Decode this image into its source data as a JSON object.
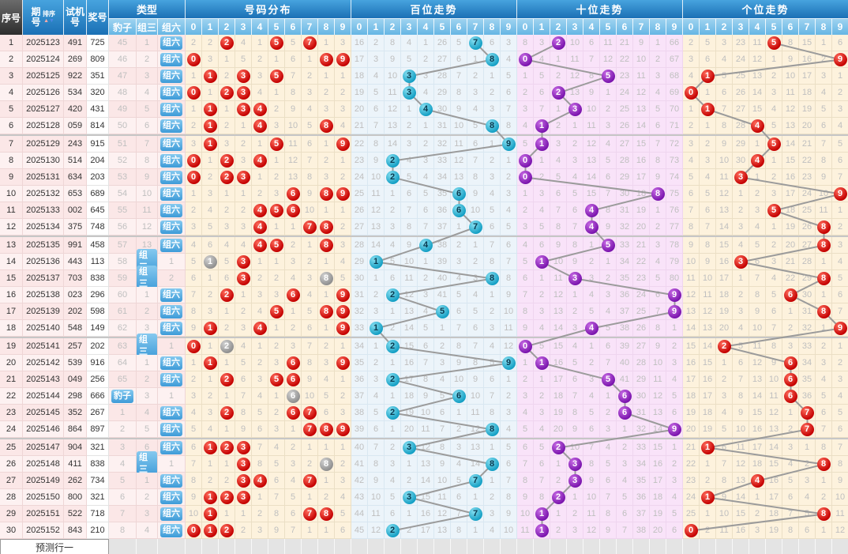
{
  "header": {
    "seq": "序号",
    "period": "期号",
    "sort": "排序",
    "test": "试机号",
    "prize": "奖号",
    "type_group": "类型",
    "type_subs": [
      "豹子",
      "组三",
      "组六"
    ],
    "digits": [
      "0",
      "1",
      "2",
      "3",
      "4",
      "5",
      "6",
      "7",
      "8",
      "9"
    ],
    "sections": [
      {
        "title": "号码分布"
      },
      {
        "title": "百位走势"
      },
      {
        "title": "十位走势"
      },
      {
        "title": "个位走势"
      }
    ]
  },
  "type_labels": {
    "baozi": "豹子",
    "zusan": "组三",
    "zuliu": "组六"
  },
  "rows": [
    {
      "seq": "1",
      "period": "2025123",
      "test": "491",
      "win": "725"
    },
    {
      "seq": "2",
      "period": "2025124",
      "test": "269",
      "win": "809"
    },
    {
      "seq": "3",
      "period": "2025125",
      "test": "922",
      "win": "351"
    },
    {
      "seq": "4",
      "period": "2025126",
      "test": "534",
      "win": "320"
    },
    {
      "seq": "5",
      "period": "2025127",
      "test": "420",
      "win": "431"
    },
    {
      "seq": "6",
      "period": "2025128",
      "test": "059",
      "win": "814"
    },
    {
      "seq": "7",
      "period": "2025129",
      "test": "243",
      "win": "915"
    },
    {
      "seq": "8",
      "period": "2025130",
      "test": "514",
      "win": "204"
    },
    {
      "seq": "9",
      "period": "2025131",
      "test": "634",
      "win": "203"
    },
    {
      "seq": "10",
      "period": "2025132",
      "test": "653",
      "win": "689"
    },
    {
      "seq": "11",
      "period": "2025133",
      "test": "002",
      "win": "645"
    },
    {
      "seq": "12",
      "period": "2025134",
      "test": "375",
      "win": "748"
    },
    {
      "seq": "13",
      "period": "2025135",
      "test": "991",
      "win": "458"
    },
    {
      "seq": "14",
      "period": "2025136",
      "test": "443",
      "win": "113"
    },
    {
      "seq": "15",
      "period": "2025137",
      "test": "703",
      "win": "838"
    },
    {
      "seq": "16",
      "period": "2025138",
      "test": "023",
      "win": "296"
    },
    {
      "seq": "17",
      "period": "2025139",
      "test": "202",
      "win": "598"
    },
    {
      "seq": "18",
      "period": "2025140",
      "test": "548",
      "win": "149"
    },
    {
      "seq": "19",
      "period": "2025141",
      "test": "257",
      "win": "202"
    },
    {
      "seq": "20",
      "period": "2025142",
      "test": "539",
      "win": "916"
    },
    {
      "seq": "21",
      "period": "2025143",
      "test": "049",
      "win": "256"
    },
    {
      "seq": "22",
      "period": "2025144",
      "test": "298",
      "win": "666"
    },
    {
      "seq": "23",
      "period": "2025145",
      "test": "352",
      "win": "267"
    },
    {
      "seq": "24",
      "period": "2025146",
      "test": "864",
      "win": "897"
    },
    {
      "seq": "25",
      "period": "2025147",
      "test": "904",
      "win": "321"
    },
    {
      "seq": "26",
      "period": "2025148",
      "test": "411",
      "win": "838"
    },
    {
      "seq": "27",
      "period": "2025149",
      "test": "262",
      "win": "734"
    },
    {
      "seq": "28",
      "period": "2025150",
      "test": "800",
      "win": "321"
    },
    {
      "seq": "29",
      "period": "2025151",
      "test": "522",
      "win": "718"
    },
    {
      "seq": "30",
      "period": "2025152",
      "test": "843",
      "win": "210"
    }
  ],
  "seeds": {
    "type": {
      "baozi": 45,
      "zusan": 1,
      "zuliu": 0
    },
    "dist": [
      2,
      2,
      0,
      4,
      1,
      0,
      5,
      0,
      1,
      3
    ],
    "hundreds": [
      16,
      2,
      8,
      4,
      1,
      26,
      5,
      0,
      6,
      3
    ],
    "tens": [
      8,
      3,
      0,
      10,
      6,
      11,
      21,
      9,
      1,
      66
    ],
    "units": [
      2,
      5,
      3,
      23,
      11,
      0,
      8,
      15,
      1,
      6
    ]
  },
  "footer": {
    "label": "预测行一"
  },
  "colors": {
    "red_ball": "#c40000",
    "gray_ball": "#8f8f8f",
    "cyan_ball": "#149fc4",
    "purple_ball": "#7a14ad",
    "trend_line": "#9b9b9b",
    "header_blue": "#1b70b5",
    "type_badge": "#3e9bd8"
  }
}
